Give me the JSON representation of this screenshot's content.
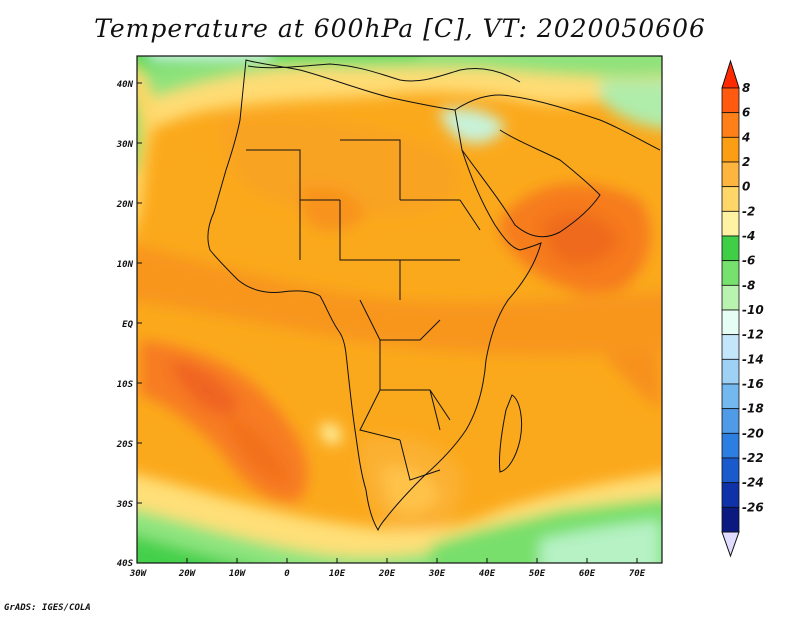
{
  "title": "Temperature at 600hPa [C], VT: 2020050606",
  "credit": "GrADS: IGES/COLA",
  "lat_labels": [
    "40N",
    "30N",
    "20N",
    "10N",
    "EQ",
    "10S",
    "20S",
    "30S",
    "40S"
  ],
  "lon_labels": [
    "30W",
    "20W",
    "10W",
    "0",
    "10E",
    "20E",
    "30E",
    "40E",
    "50E",
    "60E",
    "70E"
  ],
  "colorbar": {
    "labels": [
      "8",
      "6",
      "4",
      "2",
      "0",
      "-2",
      "-4",
      "-6",
      "-8",
      "-10",
      "-12",
      "-14",
      "-16",
      "-18",
      "-20",
      "-22",
      "-24",
      "-26"
    ],
    "colors": [
      "#ff2a00",
      "#ff5a10",
      "#ff7f18",
      "#fb9e14",
      "#fdb53f",
      "#ffd769",
      "#fff2a3",
      "#3fcf46",
      "#76e26d",
      "#b8f3b0",
      "#e6fdf6",
      "#c4e6fb",
      "#9fd1f5",
      "#74b8f0",
      "#4f9be8",
      "#2c7ee0",
      "#1a5acc",
      "#0f32a8",
      "#0a1a80",
      "#e0dcff"
    ]
  }
}
